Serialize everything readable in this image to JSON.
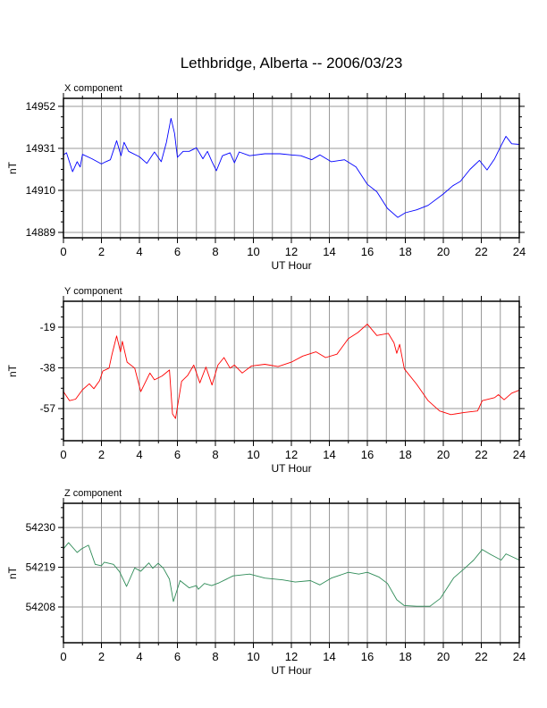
{
  "title": "Lethbridge, Alberta -- 2006/03/23",
  "chart_data": [
    {
      "type": "line",
      "title": "X component",
      "xlabel": "UT Hour",
      "ylabel": "nT",
      "color": "#0000ff",
      "xlim": [
        0,
        24
      ],
      "ylim": [
        14886.3,
        14956
      ],
      "xticks": [
        0,
        2,
        4,
        6,
        8,
        10,
        12,
        14,
        16,
        18,
        20,
        22,
        24
      ],
      "yticks": [
        14952,
        14931,
        14910,
        14889
      ],
      "grid": true,
      "x": [
        0,
        0.16,
        0.48,
        0.72,
        0.88,
        1.0,
        1.5,
        2.0,
        2.23,
        2.47,
        2.8,
        3.03,
        3.19,
        3.43,
        4.0,
        4.39,
        4.79,
        5.15,
        5.42,
        5.66,
        5.85,
        6.0,
        6.3,
        6.62,
        7.0,
        7.34,
        7.58,
        7.82,
        8.05,
        8.37,
        8.77,
        9.0,
        9.25,
        9.8,
        10.6,
        11.4,
        12,
        12.5,
        13.07,
        13.5,
        14.1,
        14.8,
        15.4,
        16,
        16.5,
        17.06,
        17.6,
        18,
        18.6,
        19.2,
        20,
        20.5,
        20.9,
        21.4,
        21.9,
        22.3,
        22.7,
        23.05,
        23.3,
        23.6,
        24
      ],
      "y": [
        14927.7,
        14928.8,
        14919.3,
        14924.3,
        14921.7,
        14928,
        14925.8,
        14923.2,
        14924.3,
        14925.3,
        14934.8,
        14927.3,
        14934,
        14929.5,
        14926.8,
        14923.5,
        14929.2,
        14924.3,
        14934,
        14946,
        14938.5,
        14926.5,
        14929.5,
        14929.5,
        14931.3,
        14925.8,
        14929.5,
        14924.3,
        14919.8,
        14927.3,
        14928.8,
        14923.8,
        14929.2,
        14927.3,
        14928.3,
        14928.3,
        14927.7,
        14927.3,
        14925.3,
        14927.7,
        14924.3,
        14925.3,
        14921.7,
        14913,
        14909.3,
        14901,
        14896.5,
        14898.8,
        14900.3,
        14902.5,
        14908.2,
        14912.3,
        14914.5,
        14920.5,
        14925,
        14920.2,
        14925.8,
        14932.5,
        14937,
        14933.3,
        14933
      ]
    },
    {
      "type": "line",
      "title": "Y component",
      "xlabel": "UT Hour",
      "ylabel": "nT",
      "color": "#ff0000",
      "xlim": [
        0,
        24
      ],
      "ylim": [
        -72,
        -6.9
      ],
      "xticks": [
        0,
        2,
        4,
        6,
        8,
        10,
        12,
        14,
        16,
        18,
        20,
        22,
        24
      ],
      "yticks": [
        -19,
        -38,
        -57
      ],
      "grid": true,
      "x": [
        0,
        0.32,
        0.64,
        1.0,
        1.36,
        1.6,
        1.9,
        2.07,
        2.4,
        2.55,
        2.8,
        3.0,
        3.1,
        3.35,
        3.75,
        4.07,
        4.55,
        4.79,
        5.19,
        5.58,
        5.74,
        5.9,
        6.22,
        6.54,
        6.86,
        7.18,
        7.5,
        7.82,
        8.13,
        8.45,
        8.77,
        9.0,
        9.41,
        9.9,
        10.6,
        11.3,
        12,
        12.6,
        13.3,
        13.8,
        14.4,
        15,
        15.5,
        16,
        16.5,
        17.1,
        17.4,
        17.55,
        17.7,
        17.95,
        18.6,
        19.2,
        19.8,
        20.4,
        21.1,
        21.8,
        22.05,
        22.7,
        22.9,
        23.2,
        23.6,
        24
      ],
      "y": [
        -49.1,
        -53.3,
        -52.6,
        -48.2,
        -45.4,
        -47.7,
        -44,
        -39.5,
        -38.1,
        -31.9,
        -23.1,
        -30.5,
        -25.6,
        -35.3,
        -38.1,
        -49.1,
        -40.4,
        -43.6,
        -41.8,
        -39,
        -59.5,
        -61.6,
        -44.3,
        -41.5,
        -36.7,
        -45,
        -37.6,
        -46,
        -36.7,
        -33.2,
        -38.1,
        -36.7,
        -40.4,
        -37.1,
        -36.3,
        -37.4,
        -35.3,
        -32.5,
        -30.5,
        -33.2,
        -31.6,
        -24.3,
        -21.5,
        -17.6,
        -22.9,
        -21.9,
        -26.3,
        -31.2,
        -27,
        -38.5,
        -45.7,
        -53.3,
        -58.1,
        -59.8,
        -58.8,
        -58.1,
        -53.3,
        -51.9,
        -50.5,
        -52.9,
        -49.8,
        -48.4
      ]
    },
    {
      "type": "line",
      "title": "Z component",
      "xlabel": "UT Hour",
      "ylabel": "nT",
      "color": "#2e8b57",
      "xlim": [
        0,
        24
      ],
      "ylim": [
        54198.1,
        54236.7
      ],
      "xticks": [
        0,
        2,
        4,
        6,
        8,
        10,
        12,
        14,
        16,
        18,
        20,
        22,
        24
      ],
      "yticks": [
        54230,
        54219,
        54208
      ],
      "grid": true,
      "x": [
        0,
        0.27,
        0.72,
        0.96,
        1.32,
        1.67,
        2.0,
        2.15,
        2.63,
        2.95,
        3.32,
        3.75,
        4.07,
        4.5,
        4.7,
        4.99,
        5.26,
        5.58,
        5.79,
        6.14,
        6.62,
        7.0,
        7.1,
        7.42,
        7.8,
        8.2,
        8.93,
        9.8,
        10.6,
        11.55,
        12.2,
        13,
        13.5,
        14.1,
        15,
        15.55,
        16,
        16.6,
        17.06,
        17.55,
        17.94,
        18.6,
        19.3,
        19.85,
        20.55,
        21.1,
        21.6,
        22.05,
        22.5,
        23.05,
        23.3,
        24
      ],
      "y": [
        54224.1,
        54225.8,
        54223.1,
        54224.1,
        54225.1,
        54219.8,
        54219.4,
        54220.4,
        54219.8,
        54217.8,
        54213.7,
        54218.8,
        54217.9,
        54220.2,
        54218.7,
        54220.1,
        54218.7,
        54215.7,
        54209.5,
        54215.3,
        54213.3,
        54213.9,
        54212.9,
        54214.5,
        54213.9,
        54214.7,
        54216.6,
        54217.1,
        54216,
        54215.5,
        54214.9,
        54215.3,
        54214.1,
        54216,
        54217.6,
        54217.1,
        54217.6,
        54216.3,
        54214.5,
        54210,
        54208.4,
        54208.2,
        54208.2,
        54210.4,
        54216.1,
        54218.6,
        54221,
        54223.9,
        54222.5,
        54221,
        54222.7,
        54221
      ]
    }
  ]
}
